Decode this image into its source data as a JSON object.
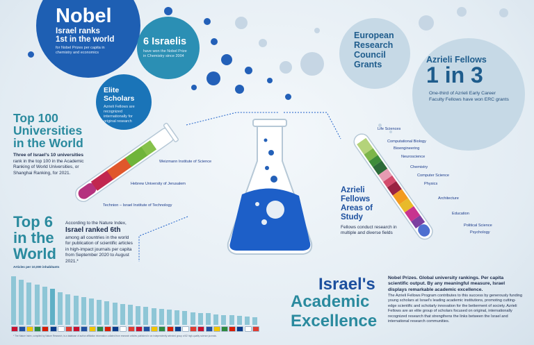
{
  "nobel": {
    "title": "Nobel",
    "line1": "Israel ranks",
    "line2": "1st in the world",
    "sub": "for Nobel Prizes per capita in chemistry and economics"
  },
  "six_israelis": {
    "title": "6 Israelis",
    "sub": "have won the Nobel Prize in Chemistry since 2004"
  },
  "elite": {
    "title1": "Elite",
    "title2": "Scholars",
    "sub": "Azrieli Fellows are recognized internationally for original research"
  },
  "erc": {
    "line1": "European",
    "line2": "Research",
    "line3": "Council",
    "line4": "Grants"
  },
  "azrieli_fellows": {
    "title": "Azrieli Fellows",
    "big": "1 in 3",
    "sub": "One-third of Azrieli Early Career Faculty Fellows have won ERC grants"
  },
  "top100": {
    "line1": "Top 100",
    "line2": "Universities",
    "line3": "in the World",
    "lead": "Three of Israel's 10 universities",
    "body": "rank in the top 100 in the Academic Ranking of World Universities, or Shanghai Ranking, for 2021.",
    "universities": [
      "Weizmann Institute of Science",
      "Hebrew University of Jerusalem",
      "Technion – Israel Institute of Technology"
    ]
  },
  "top6": {
    "line1": "Top 6",
    "line2": "in the",
    "line3": "World",
    "intro": "According to the Nature Index,",
    "headline1": "Israel ranked 6th",
    "body": "among all countries in the world for publication of scientific articles in high-impact journals per capita from September 2020 to August 2021.*"
  },
  "areas": {
    "line1": "Azrieli",
    "line2": "Fellows",
    "line3": "Areas of",
    "line4": "Study",
    "sub": "Fellows conduct research in multiple and diverse fields",
    "fields": [
      "Life Sciences",
      "Computational Biology",
      "Bioengineering",
      "Neuroscience",
      "Chemistry",
      "Computer Science",
      "Physics",
      "Architecture",
      "Education",
      "Political Science",
      "Psychology"
    ]
  },
  "chart": {
    "caption": "Articles per 10,000 inhabitants",
    "footnote": "* The Nature Index, compiled by Nature Research, is a database of author affiliation information collated from research articles published in an independently selected group of 82 high-quality science journals.",
    "bar_heights": [
      0.92,
      0.86,
      0.8,
      0.76,
      0.72,
      0.68,
      0.62,
      0.58,
      0.55,
      0.52,
      0.5,
      0.48,
      0.45,
      0.42,
      0.4,
      0.38,
      0.36,
      0.34,
      0.32,
      0.3,
      0.29,
      0.27,
      0.26,
      0.24,
      0.23,
      0.22,
      0.2,
      0.19,
      0.18,
      0.17,
      0.16,
      0.15
    ]
  },
  "excellence": {
    "line1": "Israel's",
    "line2": "Academic",
    "line3": "Excellence",
    "lead": "Nobel Prizes. Global university rankings. Per capita scientific output. By any meaningful measure, Israel displays remarkable academic excellence.",
    "body": "The Azrieli Fellows Program contributes to this success by generously funding young scholars at Israel's leading academic institutions, promoting cutting-edge scientific and scholarly innovation for the betterment of society. Azrieli Fellows are an elite group of scholars focused on original, internationally recognized research that strengthens the links between the Israel and international research communities."
  },
  "colors": {
    "navy": "#1c4f9e",
    "teal": "#2a8a9e",
    "bubble_blue": "#1e5fb3",
    "bar_teal": "#8ec6d6"
  }
}
